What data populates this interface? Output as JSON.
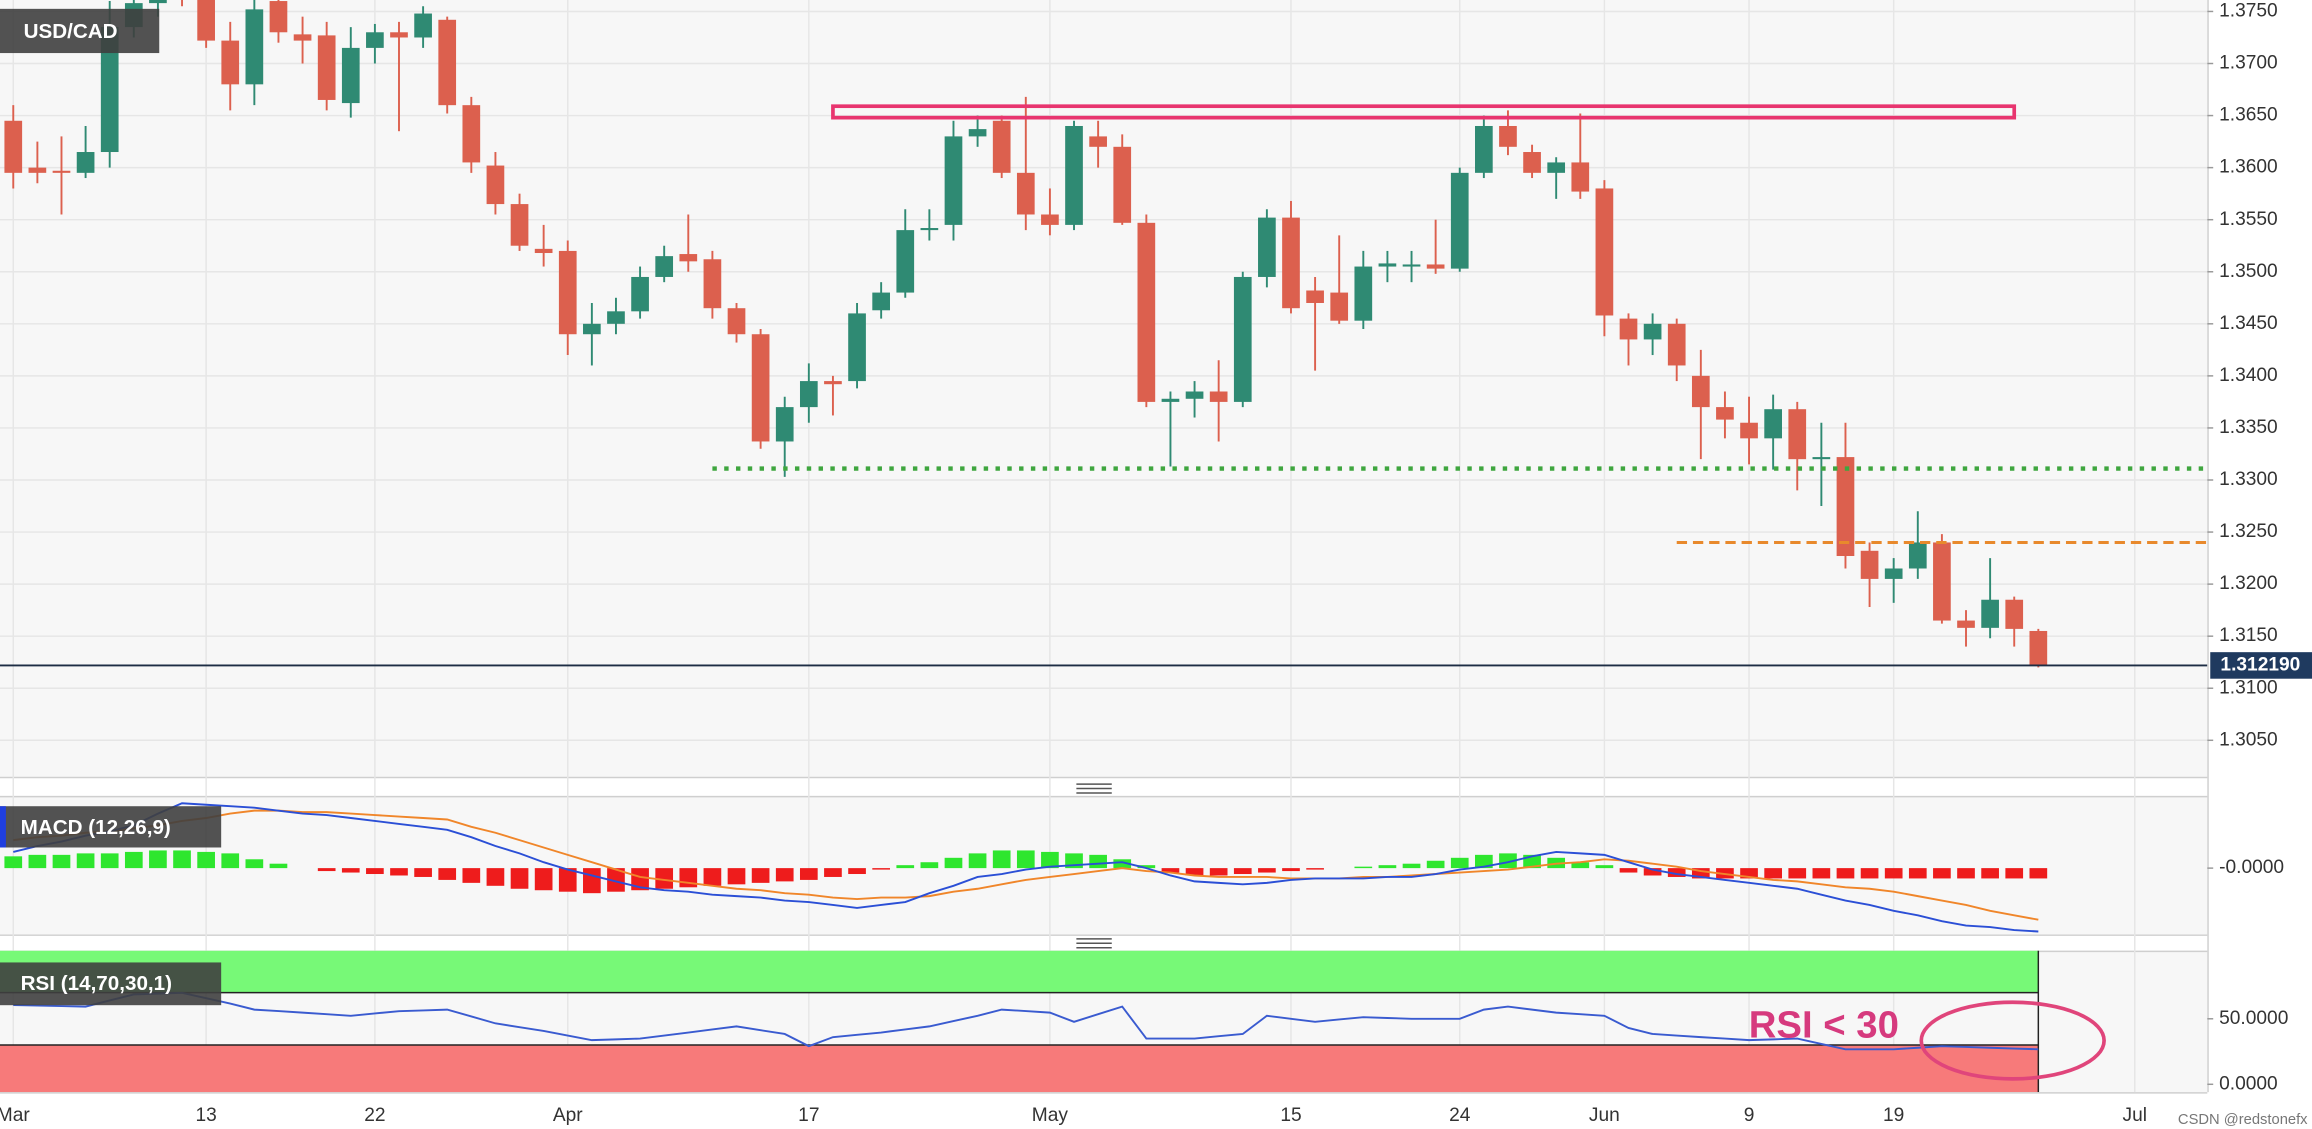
{
  "chart_data": [
    {
      "type": "candlestick",
      "title": "USD/CAD",
      "categories": [
        "Mar",
        null,
        null,
        null,
        null,
        null,
        null,
        null,
        "13",
        null,
        null,
        null,
        null,
        null,
        null,
        "22",
        null,
        null,
        null,
        null,
        null,
        null,
        null,
        "Apr",
        null,
        null,
        null,
        null,
        null,
        null,
        null,
        null,
        null,
        "17",
        null,
        null,
        null,
        null,
        null,
        null,
        null,
        null,
        null,
        "May",
        null,
        null,
        null,
        null,
        null,
        null,
        null,
        null,
        null,
        "15",
        null,
        null,
        null,
        null,
        null,
        null,
        "24",
        null,
        null,
        null,
        null,
        null,
        "Jun",
        null,
        null,
        null,
        null,
        null,
        "9",
        null,
        null,
        null,
        null,
        null,
        "19",
        null,
        null,
        null,
        null,
        null,
        null,
        null,
        null,
        null,
        "Jul"
      ],
      "open": [
        1.3645,
        1.36,
        1.3597,
        1.3595,
        1.3615,
        1.3735,
        1.3758,
        1.3775,
        1.3768,
        1.3722,
        1.368,
        1.376,
        1.3728,
        1.3727,
        1.3662,
        1.3715,
        1.373,
        1.3725,
        1.3742,
        1.366,
        1.3602,
        1.3565,
        1.3522,
        1.352,
        1.344,
        1.345,
        1.3462,
        1.3495,
        1.3517,
        1.3512,
        1.3465,
        1.344,
        1.3337,
        1.337,
        1.3395,
        1.3395,
        1.3463,
        1.348,
        1.354,
        1.3545,
        1.363,
        1.3645,
        1.3595,
        1.3555,
        1.3545,
        1.363,
        1.362,
        1.3547,
        1.3375,
        1.3378,
        1.3385,
        1.3375,
        1.3495,
        1.3552,
        1.3482,
        1.348,
        1.3453,
        1.3505,
        1.3505,
        1.3507,
        1.3503,
        1.3595,
        1.364,
        1.3615,
        1.3595,
        1.3605,
        1.358,
        1.3455,
        1.3435,
        1.345,
        1.34,
        1.337,
        1.3355,
        1.334,
        1.3368,
        1.332,
        1.3322,
        1.3232,
        1.3205,
        1.3215,
        1.324,
        1.3165,
        1.3158,
        1.3185,
        1.3155,
        null,
        null,
        null,
        null
      ],
      "high": [
        1.366,
        1.3625,
        1.363,
        1.364,
        1.376,
        1.377,
        1.379,
        1.38,
        1.378,
        1.374,
        1.377,
        1.3775,
        1.3745,
        1.374,
        1.3735,
        1.3738,
        1.374,
        1.3755,
        1.3745,
        1.3668,
        1.3615,
        1.3575,
        1.3545,
        1.353,
        1.347,
        1.3475,
        1.3505,
        1.3525,
        1.3555,
        1.352,
        1.347,
        1.3445,
        1.338,
        1.3412,
        1.34,
        1.347,
        1.349,
        1.356,
        1.356,
        1.3645,
        1.365,
        1.365,
        1.3668,
        1.358,
        1.3645,
        1.3645,
        1.3632,
        1.3555,
        1.3385,
        1.3395,
        1.3415,
        1.35,
        1.356,
        1.3568,
        1.3495,
        1.3535,
        1.352,
        1.352,
        1.352,
        1.355,
        1.36,
        1.365,
        1.3655,
        1.3622,
        1.361,
        1.3652,
        1.3588,
        1.346,
        1.346,
        1.3455,
        1.3425,
        1.3385,
        1.338,
        1.3382,
        1.3375,
        1.3355,
        1.3355,
        1.324,
        1.3225,
        1.327,
        1.3248,
        1.3175,
        1.3225,
        1.3188,
        1.3157,
        null,
        null,
        null,
        null
      ],
      "low": [
        1.358,
        1.3585,
        1.3555,
        1.359,
        1.36,
        1.3725,
        1.3745,
        1.3755,
        1.3715,
        1.3655,
        1.366,
        1.372,
        1.37,
        1.3655,
        1.3648,
        1.37,
        1.3635,
        1.3715,
        1.3652,
        1.3595,
        1.3555,
        1.352,
        1.3505,
        1.342,
        1.341,
        1.344,
        1.3455,
        1.349,
        1.35,
        1.3455,
        1.3432,
        1.333,
        1.3303,
        1.3355,
        1.3362,
        1.3388,
        1.3455,
        1.3475,
        1.353,
        1.353,
        1.362,
        1.359,
        1.354,
        1.3535,
        1.354,
        1.36,
        1.3545,
        1.337,
        1.3313,
        1.336,
        1.3337,
        1.337,
        1.3485,
        1.346,
        1.3405,
        1.345,
        1.3445,
        1.349,
        1.349,
        1.3498,
        1.35,
        1.359,
        1.3612,
        1.359,
        1.357,
        1.357,
        1.3438,
        1.341,
        1.342,
        1.3395,
        1.332,
        1.334,
        1.3315,
        1.331,
        1.329,
        1.3275,
        1.3215,
        1.3178,
        1.3182,
        1.3205,
        1.3162,
        1.314,
        1.3148,
        1.314,
        1.312,
        null,
        null,
        null,
        null
      ],
      "close": [
        1.3595,
        1.3595,
        1.3595,
        1.3615,
        1.3735,
        1.3758,
        1.3775,
        1.3768,
        1.3722,
        1.368,
        1.3752,
        1.373,
        1.3722,
        1.3665,
        1.3715,
        1.373,
        1.3725,
        1.3748,
        1.366,
        1.3605,
        1.3565,
        1.3525,
        1.3518,
        1.344,
        1.345,
        1.3462,
        1.3495,
        1.3515,
        1.351,
        1.3465,
        1.344,
        1.3337,
        1.337,
        1.3395,
        1.3392,
        1.346,
        1.348,
        1.354,
        1.3542,
        1.363,
        1.3637,
        1.3595,
        1.3555,
        1.3545,
        1.364,
        1.362,
        1.3547,
        1.3375,
        1.3378,
        1.3385,
        1.3375,
        1.3495,
        1.3552,
        1.3465,
        1.347,
        1.3453,
        1.3505,
        1.3508,
        1.3507,
        1.3503,
        1.3595,
        1.364,
        1.362,
        1.3595,
        1.3605,
        1.3577,
        1.3458,
        1.3435,
        1.345,
        1.341,
        1.337,
        1.3358,
        1.334,
        1.3368,
        1.332,
        1.3322,
        1.3227,
        1.3205,
        1.3215,
        1.324,
        1.3165,
        1.3158,
        1.3185,
        1.3157,
        1.3122,
        null,
        null,
        null,
        null
      ],
      "up_color": "#2f8a73",
      "down_color": "#dc604e",
      "ylim": [
        1.3015,
        1.3761
      ],
      "yticks": [
        {
          "value": 1.375,
          "label": "1.3750"
        },
        {
          "value": 1.37,
          "label": "1.3700"
        },
        {
          "value": 1.365,
          "label": "1.3650"
        },
        {
          "value": 1.36,
          "label": "1.3600"
        },
        {
          "value": 1.355,
          "label": "1.3550"
        },
        {
          "value": 1.35,
          "label": "1.3500"
        },
        {
          "value": 1.345,
          "label": "1.3450"
        },
        {
          "value": 1.34,
          "label": "1.3400"
        },
        {
          "value": 1.335,
          "label": "1.3350"
        },
        {
          "value": 1.33,
          "label": "1.3300"
        },
        {
          "value": 1.325,
          "label": "1.3250"
        },
        {
          "value": 1.32,
          "label": "1.3200"
        },
        {
          "value": 1.315,
          "label": "1.3150"
        },
        {
          "value": 1.31,
          "label": "1.3100"
        },
        {
          "value": 1.305,
          "label": "1.3050"
        }
      ],
      "grid": true,
      "last_price": {
        "value": 1.31219,
        "label": "1.312190"
      },
      "levels": [
        {
          "value": 1.3311,
          "from": 29,
          "color": "#3fa63f",
          "dash": "dotted"
        },
        {
          "value": 1.324,
          "from": 69,
          "color": "#e8892c",
          "dash": "dashed"
        }
      ],
      "zone": {
        "low": 1.3648,
        "high": 1.3659,
        "from": 34,
        "to": 83,
        "color": "#e8356f"
      }
    },
    {
      "type": "macd",
      "title": "MACD (12,26,9)",
      "macd": {
        "color": "#2b4fd6",
        "values": [
          0.0011,
          0.0015,
          0.0018,
          0.0022,
          0.0025,
          0.0029,
          0.0037,
          0.0044,
          0.0043,
          0.0042,
          0.0041,
          0.0039,
          0.0037,
          0.0036,
          0.0034,
          0.0032,
          0.003,
          0.0028,
          0.0026,
          0.0021,
          0.0015,
          0.001,
          0.0004,
          -0.0001,
          -0.0005,
          -0.0009,
          -0.0013,
          -0.0015,
          -0.0016,
          -0.0018,
          -0.0019,
          -0.002,
          -0.0022,
          -0.0023,
          -0.0025,
          -0.0027,
          -0.0025,
          -0.0023,
          -0.0017,
          -0.0012,
          -0.0006,
          -0.0004,
          -0.0001,
          0.0001,
          0.0002,
          0.0003,
          0.0004,
          0.0,
          -0.0005,
          -0.0009,
          -0.001,
          -0.0011,
          -0.001,
          -0.0008,
          -0.0007,
          -0.0007,
          -0.0007,
          -0.0006,
          -0.0006,
          -0.0004,
          -0.0001,
          0.0001,
          0.0004,
          0.0008,
          0.0011,
          0.001,
          0.0009,
          0.0004,
          -0.0001,
          -0.0004,
          -0.0006,
          -0.0008,
          -0.001,
          -0.0012,
          -0.0014,
          -0.0018,
          -0.0022,
          -0.0025,
          -0.0029,
          -0.0032,
          -0.0036,
          -0.0039,
          -0.004,
          -0.0042,
          -0.0043
        ]
      },
      "signal": {
        "color": "#f0862a",
        "values": [
          0.0019,
          0.0021,
          0.0022,
          0.0024,
          0.0025,
          0.0027,
          0.0029,
          0.0032,
          0.0034,
          0.0037,
          0.0039,
          0.0039,
          0.0038,
          0.0038,
          0.0037,
          0.0036,
          0.0035,
          0.0034,
          0.0033,
          0.0028,
          0.0024,
          0.0019,
          0.0014,
          0.0009,
          0.0004,
          -0.0001,
          -0.0006,
          -0.0008,
          -0.001,
          -0.0012,
          -0.0014,
          -0.0015,
          -0.0017,
          -0.0018,
          -0.002,
          -0.0021,
          -0.002,
          -0.002,
          -0.0019,
          -0.0016,
          -0.0014,
          -0.0011,
          -0.0008,
          -0.0006,
          -0.0004,
          -0.0002,
          0.0,
          -0.0002,
          -0.0003,
          -0.0005,
          -0.0006,
          -0.0006,
          -0.0006,
          -0.0007,
          -0.0007,
          -0.0007,
          -0.0006,
          -0.0006,
          -0.0005,
          -0.0004,
          -0.0003,
          -0.0002,
          -0.0001,
          0.0001,
          0.0003,
          0.0004,
          0.0006,
          0.0005,
          0.0003,
          0.0001,
          -0.0002,
          -0.0004,
          -0.0006,
          -0.0008,
          -0.0009,
          -0.0011,
          -0.0013,
          -0.0014,
          -0.0016,
          -0.0019,
          -0.0022,
          -0.0025,
          -0.0029,
          -0.0032,
          -0.0035
        ]
      },
      "histogram": {
        "up_color": "#2ee62e",
        "down_color": "#ee1c1c",
        "values": [
          0.0008,
          0.0009,
          0.0009,
          0.001,
          0.001,
          0.0011,
          0.0012,
          0.0012,
          0.0011,
          0.001,
          0.0006,
          0.0003,
          0.0,
          -0.0002,
          -0.0003,
          -0.0004,
          -0.0005,
          -0.0006,
          -0.0008,
          -0.001,
          -0.0012,
          -0.0014,
          -0.0015,
          -0.0016,
          -0.0017,
          -0.0016,
          -0.0015,
          -0.0014,
          -0.0013,
          -0.0012,
          -0.0011,
          -0.001,
          -0.0009,
          -0.0008,
          -0.0006,
          -0.0004,
          -0.0001,
          0.0002,
          0.0004,
          0.0007,
          0.001,
          0.0012,
          0.0012,
          0.0011,
          0.001,
          0.0009,
          0.0006,
          0.0002,
          -0.0003,
          -0.0005,
          -0.0005,
          -0.0004,
          -0.0003,
          -0.0002,
          -0.0001,
          0.0,
          0.0001,
          0.0002,
          0.0003,
          0.0005,
          0.0007,
          0.0009,
          0.001,
          0.0009,
          0.0007,
          0.0004,
          0.0002,
          -0.0003,
          -0.0005,
          -0.0006,
          -0.0007,
          -0.0007,
          -0.0007,
          -0.0007,
          -0.0007,
          -0.0007,
          -0.0007,
          -0.0007,
          -0.0007,
          -0.0007,
          -0.0007,
          -0.0007,
          -0.0007,
          -0.0007,
          -0.0007
        ]
      },
      "ylim": [
        -0.0045,
        0.0049
      ],
      "yticks": [
        {
          "value": 0,
          "label": "-0.0000"
        }
      ]
    },
    {
      "type": "rsi",
      "title": "RSI (14,70,30,1)",
      "color": "#3a5bd0",
      "values": [
        60.5,
        60.1,
        59.7,
        59.3,
        64.0,
        68.6,
        69.2,
        69.8,
        65.7,
        61.6,
        57.0,
        55.9,
        54.7,
        53.5,
        52.3,
        54.1,
        55.8,
        56.4,
        57.0,
        51.8,
        46.5,
        43.6,
        40.7,
        37.2,
        33.7,
        34.3,
        34.9,
        37.2,
        39.5,
        41.9,
        44.2,
        41.3,
        38.4,
        29.1,
        36.0,
        37.8,
        39.5,
        41.9,
        44.2,
        48.3,
        52.3,
        57.0,
        55.9,
        54.7,
        47.7,
        53.5,
        59.3,
        34.9,
        34.9,
        34.9,
        36.7,
        38.4,
        52.3,
        50.0,
        47.7,
        49.5,
        51.2,
        50.6,
        50.0,
        50.0,
        50.0,
        57.0,
        59.3,
        57.0,
        54.7,
        53.5,
        52.3,
        43.0,
        38.4,
        37.2,
        36.0,
        34.9,
        33.7,
        34.3,
        34.9,
        30.8,
        26.7,
        26.7,
        26.7,
        27.9,
        29.1,
        28.5,
        27.9,
        27.3,
        26.7
      ],
      "upper": 70,
      "lower": 30,
      "upper_color": "#77f977",
      "lower_color": "#f77a7a",
      "ylim": [
        -6,
        102
      ],
      "yticks": [
        {
          "value": 50,
          "label": "50.0000"
        },
        {
          "value": 0,
          "label": "0.0000"
        }
      ],
      "annotation": "RSI < 30"
    }
  ],
  "watermark": "CSDN @redstonefx"
}
